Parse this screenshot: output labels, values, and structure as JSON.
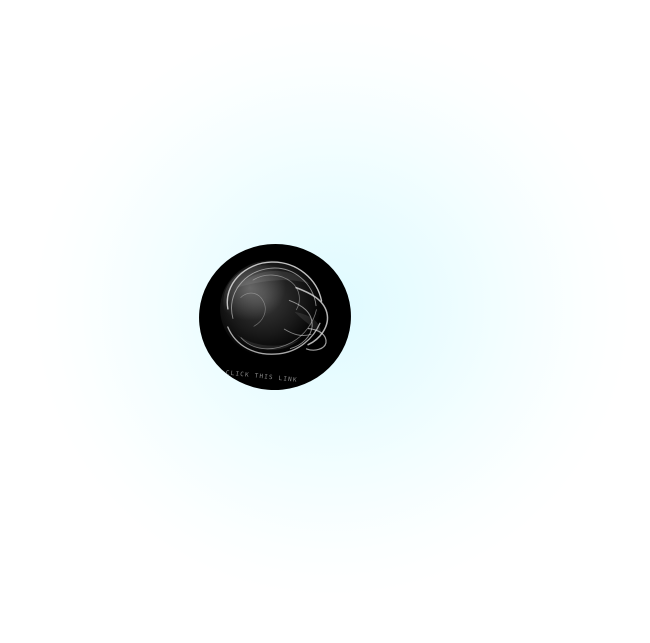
{
  "canvas": {
    "background_color": "#ffffff",
    "glow_color": "#dffaff"
  },
  "orb": {
    "fill_color": "#000000",
    "art_color": "#d9d9d9",
    "caption": "CLICK THIS LINK"
  }
}
